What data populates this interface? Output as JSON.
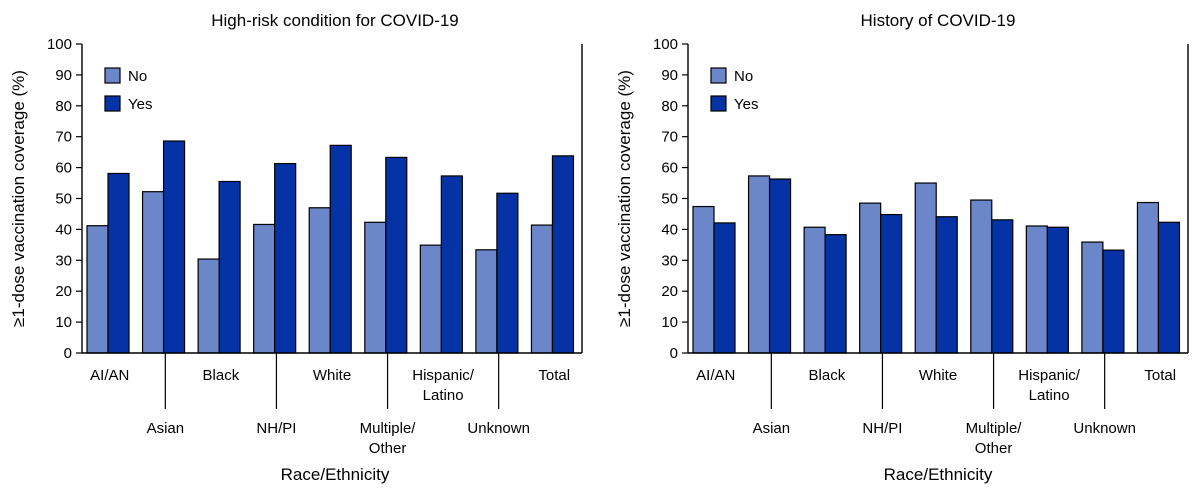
{
  "chart_data": [
    {
      "type": "bar",
      "title": "High-risk condition for COVID-19",
      "xlabel": "Race/Ethnicity",
      "ylabel": "≥1-dose vaccination coverage (%)",
      "ylim": [
        0,
        100
      ],
      "yticks": [
        0,
        10,
        20,
        30,
        40,
        50,
        60,
        70,
        80,
        90,
        100
      ],
      "legend_position": "top-left",
      "categories": [
        [
          "AI/AN"
        ],
        [
          "Asian"
        ],
        [
          "Black"
        ],
        [
          "NH/PI"
        ],
        [
          "White"
        ],
        [
          "Multiple/",
          "Other"
        ],
        [
          "Hispanic/",
          "Latino"
        ],
        [
          "Unknown"
        ],
        [
          "Total"
        ]
      ],
      "series": [
        {
          "name": "No",
          "color": "#6b86c9",
          "values": [
            41.2,
            52.2,
            30.4,
            41.6,
            47.0,
            42.3,
            34.9,
            33.4,
            41.4
          ]
        },
        {
          "name": "Yes",
          "color": "#0533a5",
          "values": [
            58.1,
            68.6,
            55.5,
            61.3,
            67.2,
            63.3,
            57.3,
            51.7,
            63.8
          ]
        }
      ]
    },
    {
      "type": "bar",
      "title": "History of COVID-19",
      "xlabel": "Race/Ethnicity",
      "ylabel": "≥1-dose vaccination coverage (%)",
      "ylim": [
        0,
        100
      ],
      "yticks": [
        0,
        10,
        20,
        30,
        40,
        50,
        60,
        70,
        80,
        90,
        100
      ],
      "legend_position": "top-left",
      "categories": [
        [
          "AI/AN"
        ],
        [
          "Asian"
        ],
        [
          "Black"
        ],
        [
          "NH/PI"
        ],
        [
          "White"
        ],
        [
          "Multiple/",
          "Other"
        ],
        [
          "Hispanic/",
          "Latino"
        ],
        [
          "Unknown"
        ],
        [
          "Total"
        ]
      ],
      "series": [
        {
          "name": "No",
          "color": "#6b86c9",
          "values": [
            47.4,
            57.3,
            40.7,
            48.5,
            55.0,
            49.5,
            41.1,
            35.9,
            48.7
          ]
        },
        {
          "name": "Yes",
          "color": "#0533a5",
          "values": [
            42.1,
            56.3,
            38.3,
            44.8,
            44.1,
            43.1,
            40.7,
            33.3,
            42.3
          ]
        }
      ]
    }
  ]
}
